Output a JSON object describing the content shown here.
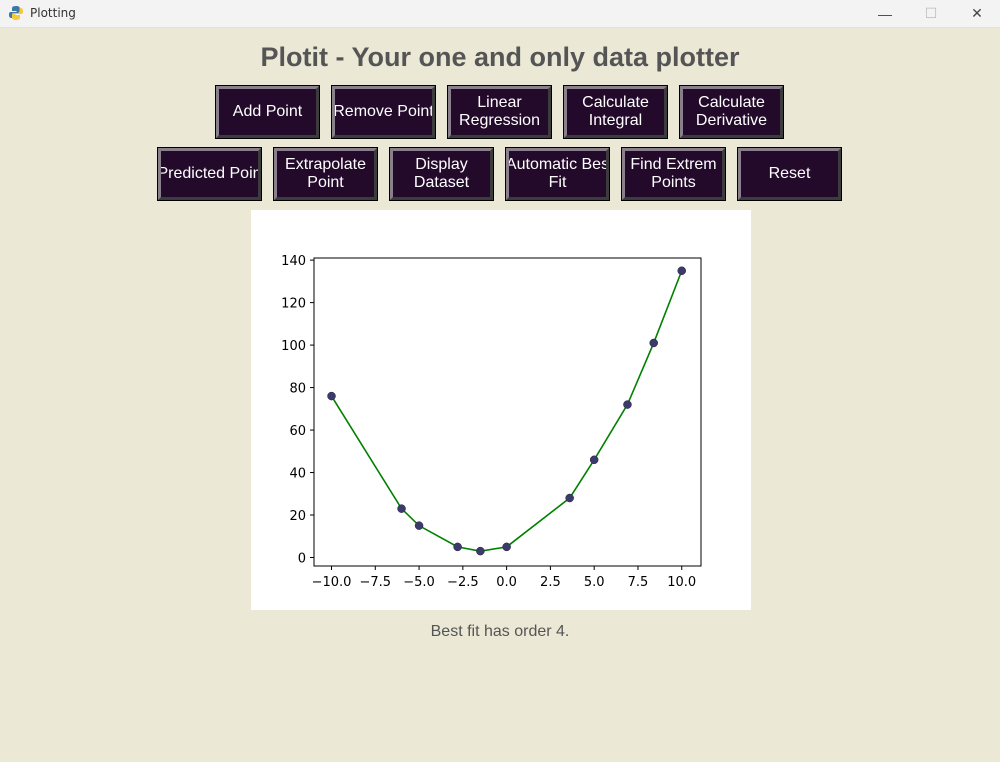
{
  "window": {
    "title": "Plotting",
    "minimize_glyph": "—",
    "maximize_glyph": "☐",
    "close_glyph": "✕"
  },
  "app": {
    "heading": "Plotit - Your one and only data plotter"
  },
  "buttons": {
    "row1": [
      {
        "lines": [
          "Add Point"
        ]
      },
      {
        "lines": [
          "Remove Point"
        ]
      },
      {
        "lines": [
          "Linear",
          "Regression"
        ]
      },
      {
        "lines": [
          "Calculate",
          "Integral"
        ]
      },
      {
        "lines": [
          "Calculate",
          "Derivative"
        ]
      }
    ],
    "row2": [
      {
        "lines": [
          "Predicted Poin"
        ]
      },
      {
        "lines": [
          "Extrapolate",
          "Point"
        ]
      },
      {
        "lines": [
          "Display",
          "Dataset"
        ]
      },
      {
        "lines": [
          "Automatic Bes",
          "Fit"
        ]
      },
      {
        "lines": [
          "Find Extrem",
          "Points"
        ]
      },
      {
        "lines": [
          "Reset"
        ]
      }
    ]
  },
  "status": {
    "message": "Best fit has order 4."
  },
  "chart_data": {
    "type": "line",
    "title": "",
    "xlabel": "",
    "ylabel": "",
    "xlim": [
      -11,
      11.1
    ],
    "ylim": [
      -4,
      141
    ],
    "xticks": [
      -10.0,
      -7.5,
      -5.0,
      -2.5,
      0.0,
      2.5,
      5.0,
      7.5,
      10.0
    ],
    "xtick_labels": [
      "−10.0",
      "−7.5",
      "−5.0",
      "−2.5",
      "0.0",
      "2.5",
      "5.0",
      "7.5",
      "10.0"
    ],
    "yticks": [
      0,
      20,
      40,
      60,
      80,
      100,
      120,
      140
    ],
    "ytick_labels": [
      "0",
      "20",
      "40",
      "60",
      "80",
      "100",
      "120",
      "140"
    ],
    "grid": false,
    "series": [
      {
        "x": [
          -10.0,
          -6.0,
          -5.0,
          -2.8,
          -1.5,
          0.0,
          3.6,
          5.0,
          6.9,
          8.4,
          10.0
        ],
        "y": [
          76,
          23,
          15,
          5,
          3,
          5,
          28,
          46,
          72,
          101,
          135
        ],
        "line_color": "#008000",
        "marker_color": "#3b3b6b"
      }
    ]
  }
}
